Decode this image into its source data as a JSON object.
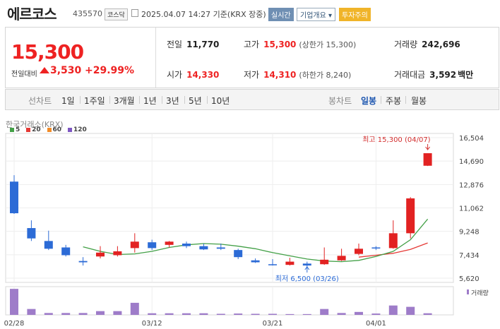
{
  "header": {
    "name": "에르코스",
    "code": "435570",
    "market": "코스닥",
    "datetime": "2025.04.07 14:27 기준(KRX 장중)",
    "realtime_label": "실시간",
    "company_label": "기업개요 ▾",
    "warning_label": "투자주의"
  },
  "quote": {
    "price": "15,300",
    "change_label": "전일대비",
    "change": "3,530",
    "change_pct": "+29.99%",
    "prev_label": "전일",
    "prev": "11,770",
    "open_label": "시가",
    "open": "14,330",
    "high_label": "고가",
    "high": "15,300",
    "high_sub": "(상한가 15,300)",
    "low_label": "저가",
    "low": "14,310",
    "low_sub": "(하한가 8,240)",
    "volume_label": "거래량",
    "volume": "242,696",
    "amount_label": "거래대금",
    "amount": "3,592",
    "amount_unit": "백만"
  },
  "periods": {
    "line_label": "선차트",
    "line_items": [
      "1일",
      "1주일",
      "3개월",
      "1년",
      "3년",
      "5년",
      "10년"
    ],
    "candle_label": "봉차트",
    "candle_items": [
      "일봉",
      "주봉",
      "월봉"
    ],
    "selected": "일봉"
  },
  "chart_source": "한국거래소(KRX)",
  "legend": [
    {
      "label": "5",
      "color": "#43a047"
    },
    {
      "label": "20",
      "color": "#e53935"
    },
    {
      "label": "60",
      "color": "#f28c28"
    },
    {
      "label": "120",
      "color": "#7e57c2"
    }
  ],
  "colors": {
    "up": "#e22222",
    "down": "#2c6bd6",
    "ma5": "#43a047",
    "ma20": "#e53935",
    "volume": "#9e7cc9"
  },
  "chart_data": {
    "type": "candlestick",
    "y_ticks": [
      "16,504",
      "14,690",
      "12,876",
      "11,062",
      "9,248",
      "7,434",
      "5,620"
    ],
    "ylim": [
      5620,
      16504
    ],
    "x_labels": [
      {
        "label": "02/28",
        "index": 0
      },
      {
        "label": "03/12",
        "index": 8
      },
      {
        "label": "03/21",
        "index": 15
      },
      {
        "label": "04/01",
        "index": 21
      }
    ],
    "candles": [
      {
        "o": 13100,
        "h": 13600,
        "l": 10600,
        "c": 10650
      },
      {
        "o": 9500,
        "h": 10100,
        "l": 8500,
        "c": 8700
      },
      {
        "o": 8500,
        "h": 9300,
        "l": 7800,
        "c": 7900
      },
      {
        "o": 8000,
        "h": 8200,
        "l": 7300,
        "c": 7400
      },
      {
        "o": 6950,
        "h": 7250,
        "l": 6600,
        "c": 6850
      },
      {
        "o": 7300,
        "h": 8100,
        "l": 7150,
        "c": 7600
      },
      {
        "o": 7400,
        "h": 8100,
        "l": 7300,
        "c": 7700
      },
      {
        "o": 7950,
        "h": 9100,
        "l": 7600,
        "c": 8450
      },
      {
        "o": 8400,
        "h": 8600,
        "l": 7800,
        "c": 7950
      },
      {
        "o": 8200,
        "h": 8500,
        "l": 8000,
        "c": 8450
      },
      {
        "o": 8300,
        "h": 8450,
        "l": 7950,
        "c": 8100
      },
      {
        "o": 8100,
        "h": 8300,
        "l": 7800,
        "c": 7850
      },
      {
        "o": 8000,
        "h": 8300,
        "l": 7800,
        "c": 7900
      },
      {
        "o": 7800,
        "h": 7900,
        "l": 7100,
        "c": 7250
      },
      {
        "o": 7000,
        "h": 7150,
        "l": 6800,
        "c": 6850
      },
      {
        "o": 6700,
        "h": 7100,
        "l": 6600,
        "c": 6650
      },
      {
        "o": 6650,
        "h": 7200,
        "l": 6600,
        "c": 6900
      },
      {
        "o": 6750,
        "h": 6900,
        "l": 6500,
        "c": 6600
      },
      {
        "o": 6700,
        "h": 8000,
        "l": 6650,
        "c": 7050
      },
      {
        "o": 7000,
        "h": 7900,
        "l": 6950,
        "c": 7350
      },
      {
        "o": 7500,
        "h": 8300,
        "l": 7400,
        "c": 7900
      },
      {
        "o": 8000,
        "h": 8100,
        "l": 7800,
        "c": 7950
      },
      {
        "o": 7950,
        "h": 10100,
        "l": 7900,
        "c": 9100
      },
      {
        "o": 9100,
        "h": 11900,
        "l": 8700,
        "c": 11800
      },
      {
        "o": 14330,
        "h": 15300,
        "l": 14310,
        "c": 15300
      }
    ],
    "ma5": [
      null,
      null,
      null,
      null,
      8050,
      7700,
      7450,
      7500,
      7700,
      8000,
      8200,
      8300,
      8250,
      8100,
      7900,
      7600,
      7350,
      7100,
      6950,
      6900,
      7000,
      7300,
      7700,
      8600,
      10200
    ],
    "ma20": [
      null,
      null,
      null,
      null,
      null,
      null,
      null,
      null,
      null,
      null,
      null,
      null,
      null,
      null,
      null,
      null,
      null,
      null,
      null,
      null,
      7250,
      7400,
      7550,
      7850,
      8350
    ],
    "volume": [
      0.97,
      0.22,
      0.07,
      0.07,
      0.07,
      0.14,
      0.14,
      0.45,
      0.06,
      0.06,
      0.06,
      0.06,
      0.04,
      0.05,
      0.04,
      0.04,
      0.03,
      0.03,
      0.22,
      0.07,
      0.11,
      0.05,
      0.35,
      0.3,
      0.06
    ],
    "high_annotation": "최고 15,300 (04/07)",
    "low_annotation": "최저 6,500 (03/26)",
    "volume_label": "거래량"
  }
}
